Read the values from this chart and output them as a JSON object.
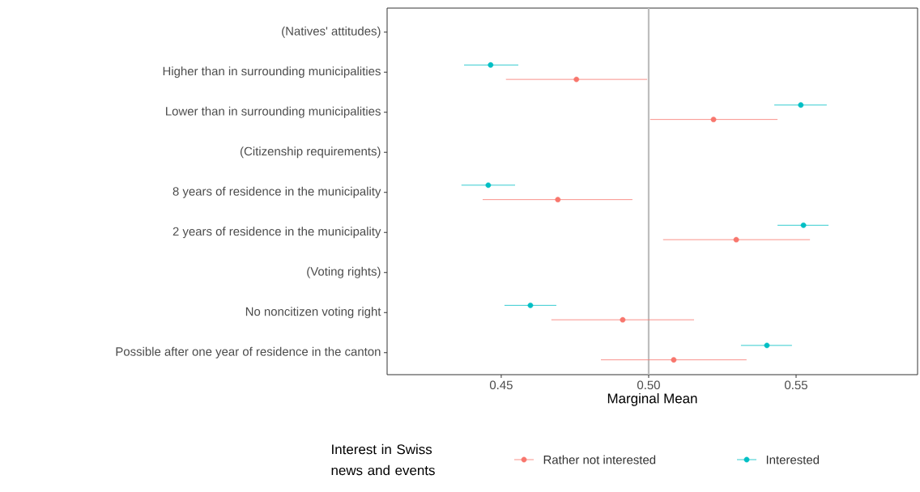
{
  "chart_data": {
    "type": "scatter",
    "xlabel": "Marginal Mean",
    "legend_title": "Interest in Swiss news and events",
    "categories": [
      "(Natives' attitudes)",
      "Higher than in surrounding municipalities",
      "Lower than in surrounding municipalities",
      "(Citizenship requirements)",
      "8 years of residence in the municipality",
      "2 years of residence in the municipality",
      "(Voting rights)",
      "No noncitizen voting right",
      "Possible after one year of residence in the canton"
    ],
    "series": [
      {
        "name": "Rather not interested",
        "color": "#f8766d",
        "values": [
          null,
          0.4755,
          0.522,
          null,
          0.4692,
          0.5297,
          null,
          0.4912,
          0.5085
        ],
        "errors": [
          null,
          [
            0.4516,
            0.4995
          ],
          [
            0.5005,
            0.5437
          ],
          null,
          [
            0.4437,
            0.4945
          ],
          [
            0.5049,
            0.5547
          ],
          null,
          [
            0.467,
            0.5154
          ],
          [
            0.4838,
            0.5332
          ]
        ]
      },
      {
        "name": "Interested",
        "color": "#00bfc4",
        "values": [
          null,
          0.4464,
          0.5516,
          null,
          0.4456,
          0.5525,
          null,
          0.4599,
          0.5401
        ],
        "errors": [
          null,
          [
            0.4374,
            0.4558
          ],
          [
            0.5426,
            0.5604
          ],
          null,
          [
            0.4365,
            0.4547
          ],
          [
            0.5437,
            0.561
          ],
          null,
          [
            0.4511,
            0.4687
          ],
          [
            0.5313,
            0.5486
          ]
        ]
      }
    ],
    "orientation": "horizontal",
    "xlim": [
      0.4113,
      0.5912
    ],
    "xticks": [
      0.45,
      {
        "value": 0.5,
        "label": "0.50"
      },
      0.55
    ],
    "ref_lines": [
      {
        "axis": "x",
        "value": 0.5,
        "color": "#bebebe"
      }
    ],
    "marker": "circle",
    "legend": "bottom",
    "grid": false
  }
}
